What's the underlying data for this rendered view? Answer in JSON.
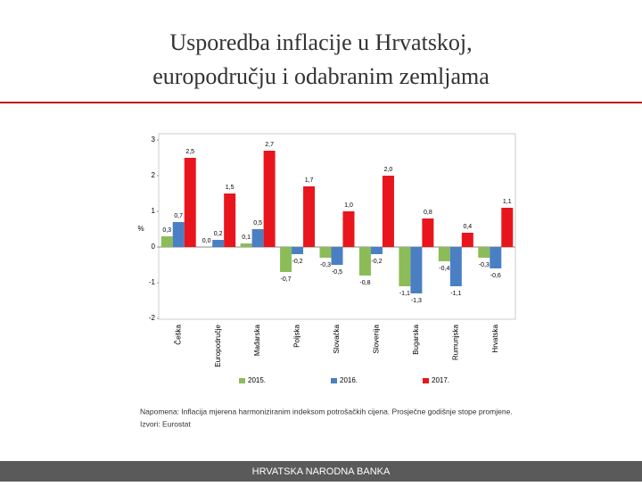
{
  "slide": {
    "title": "Usporedba inflacije u Hrvatskoj, europodručju i odabranim zemljama",
    "note": "Napomena: Inflacija mjerena harmoniziranim indeksom potrošačkih cijena. Prosječne godišnje stope promjene.",
    "source": "Izvori: Eurostat",
    "footer": "HRVATSKA NARODNA BANKA"
  },
  "chart_data": {
    "type": "bar",
    "y_label": "%",
    "categories": [
      "Češka",
      "Europodručje",
      "Mađarska",
      "Poljska",
      "Slovačka",
      "Slovenija",
      "Bugarska",
      "Rumunjska",
      "Hrvatska"
    ],
    "series": [
      {
        "name": "2015.",
        "color": "#8cbc58",
        "values": [
          0.3,
          0.0,
          0.1,
          -0.7,
          -0.3,
          -0.8,
          -1.1,
          -0.4,
          -0.3
        ],
        "value_labels": [
          "0,3",
          "0,0",
          "0,1",
          "-0,7",
          "-0,3",
          "-0,8",
          "-1,1",
          "-0,4",
          "-0,3"
        ]
      },
      {
        "name": "2016.",
        "color": "#4a7fc4",
        "values": [
          0.7,
          0.2,
          0.5,
          -0.2,
          -0.5,
          -0.2,
          -1.3,
          -1.1,
          -0.6
        ],
        "value_labels": [
          "0,7",
          "0,2",
          "0,5",
          "-0,2",
          "-0,5",
          "-0,2",
          "-1,3",
          "-1,1",
          "-0,6"
        ]
      },
      {
        "name": "2017.",
        "color": "#e8161c",
        "values": [
          2.5,
          1.5,
          2.7,
          1.7,
          1.0,
          2.0,
          0.8,
          0.4,
          1.1
        ],
        "value_labels": [
          "2,5",
          "1,5",
          "2,7",
          "1,7",
          "1,0",
          "2,0",
          "0,8",
          "0,4",
          "1,1"
        ]
      }
    ],
    "ylim": [
      -2,
      3
    ],
    "yticks": [
      -2,
      -1,
      0,
      1,
      2,
      3
    ],
    "grid": false
  }
}
